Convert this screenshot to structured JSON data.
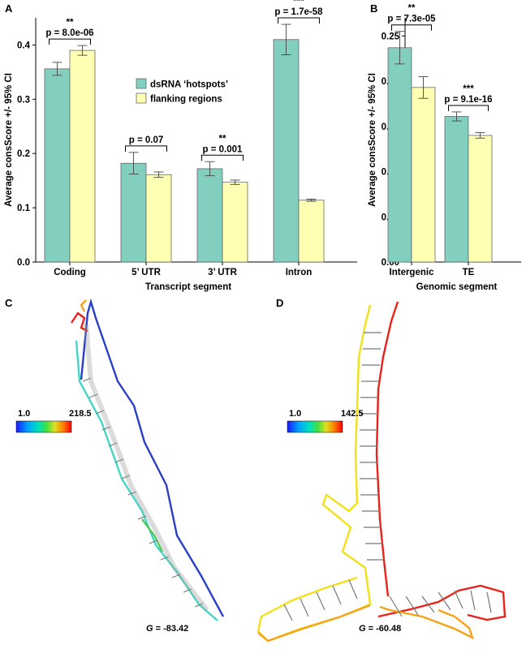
{
  "panels": {
    "A": "A",
    "B": "B",
    "C": "C",
    "D": "D"
  },
  "legend": {
    "hotspots": "dsRNA ‘hotspots’",
    "flanking": "flanking regions"
  },
  "colors": {
    "hotspots": "#82cfc0",
    "flanking": "#ffffb3",
    "bar_stroke": "#666666",
    "axis": "#000000",
    "outline_red": "#e8231a",
    "outline_yellow": "#f2e11a",
    "outline_orange": "#f5a31a",
    "outline_blue": "#2a3fc7",
    "outline_cyan": "#45d6c8",
    "outline_green": "#56c85a"
  },
  "chart_data": [
    {
      "panel": "A",
      "type": "bar",
      "ylabel": "Average consScore +/- 95% CI",
      "xlabel": "Transcript segment",
      "categories": [
        "Coding",
        "5’ UTR",
        "3’ UTR",
        "Intron"
      ],
      "ylim": [
        0,
        0.45
      ],
      "yticks": [
        "0.0",
        "0.1",
        "0.2",
        "0.3",
        "0.4"
      ],
      "series": [
        {
          "name": "dsRNA ‘hotspots’",
          "values": [
            0.356,
            0.182,
            0.172,
            0.41
          ],
          "err": [
            0.012,
            0.02,
            0.013,
            0.028
          ]
        },
        {
          "name": "flanking regions",
          "values": [
            0.39,
            0.161,
            0.147,
            0.114
          ],
          "err": [
            0.009,
            0.005,
            0.004,
            0.002
          ]
        }
      ],
      "annotations": [
        {
          "stars": "**",
          "text": "p = 8.0e-06"
        },
        {
          "stars": "",
          "text": "p = 0.07"
        },
        {
          "stars": "**",
          "text": "p = 0.001"
        },
        {
          "stars": "***",
          "text": "p = 1.7e-58"
        }
      ]
    },
    {
      "panel": "B",
      "type": "bar",
      "ylabel": "Average consScore +/- 95% CI",
      "xlabel": "Genomic segment",
      "categories": [
        "Intergenic",
        "TE"
      ],
      "ylim": [
        0,
        0.27
      ],
      "yticks": [
        "0.00",
        "0.05",
        "0.10",
        "0.15",
        "0.20",
        "0.25"
      ],
      "series": [
        {
          "name": "dsRNA ‘hotspots’",
          "values": [
            0.237,
            0.161
          ],
          "err": [
            0.018,
            0.005
          ]
        },
        {
          "name": "flanking regions",
          "values": [
            0.193,
            0.14
          ],
          "err": [
            0.012,
            0.003
          ]
        }
      ],
      "annotations": [
        {
          "stars": "**",
          "text": "p = 7.3e-05"
        },
        {
          "stars": "***",
          "text": "p = 9.1e-16"
        }
      ]
    }
  ],
  "structures": {
    "C": {
      "scale_min": "1.0",
      "scale_max": "218.5",
      "energy_symbol": "G",
      "energy_value": " = -83.42"
    },
    "D": {
      "scale_min": "1.0",
      "scale_max": "142.5",
      "energy_symbol": "G",
      "energy_value": " = -60.48"
    }
  }
}
